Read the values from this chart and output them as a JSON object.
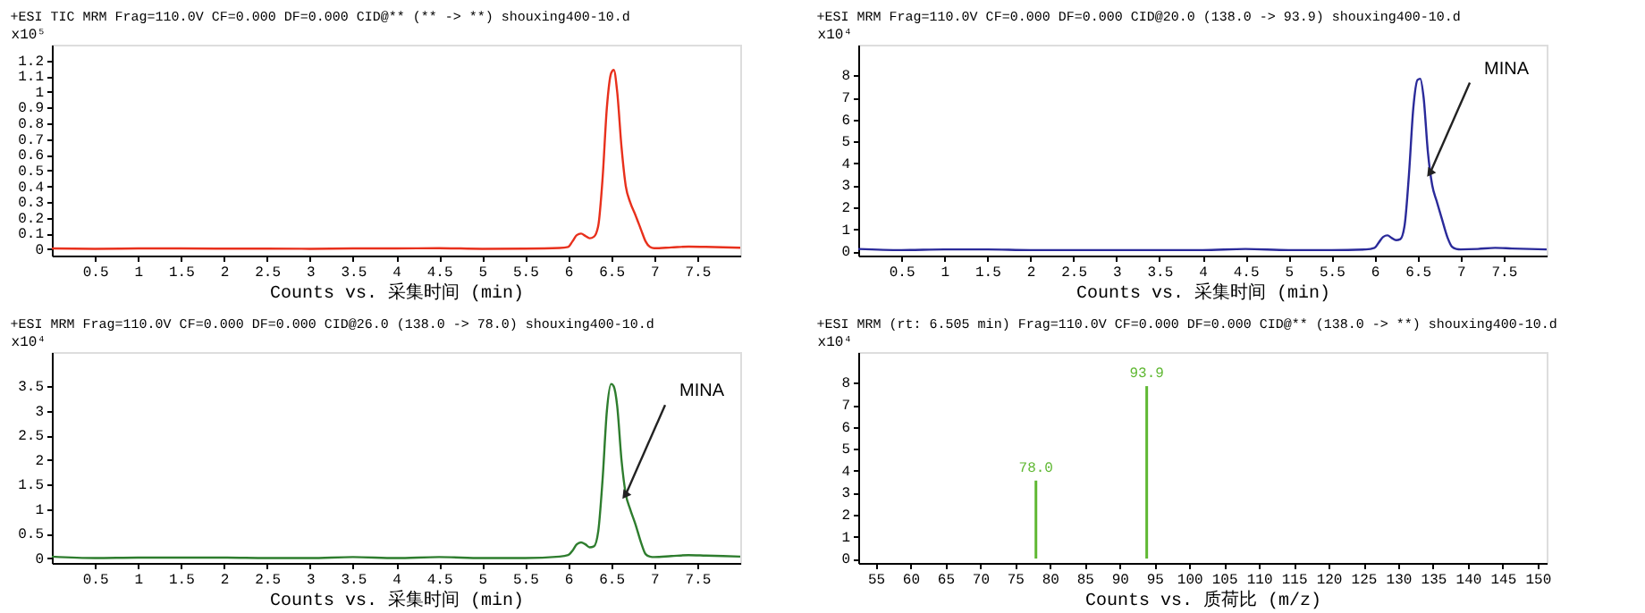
{
  "chart_data": [
    {
      "type": "line",
      "title": "+ESI TIC MRM Frag=110.0V CF=0.000 DF=0.000 CID@** (** -> **) shouxing400-10.d",
      "xlabel": "Counts vs. 采集时间 (min)",
      "ylabel": "x10⁵",
      "xlim": [
        0,
        8
      ],
      "xticks": [
        0.5,
        1,
        1.5,
        2,
        2.5,
        3,
        3.5,
        4,
        4.5,
        5,
        5.5,
        6,
        6.5,
        7,
        7.5
      ],
      "ylim": [
        -0.04,
        1.3
      ],
      "yticks": [
        0,
        0.1,
        0.2,
        0.3,
        0.4,
        0.5,
        0.6,
        0.7,
        0.8,
        0.9,
        1,
        1.1,
        1.2
      ],
      "grid": false,
      "x": [
        0,
        0.5,
        1,
        1.5,
        2,
        2.5,
        3,
        3.5,
        4,
        4.5,
        5,
        5.5,
        5.9,
        6.0,
        6.05,
        6.1,
        6.15,
        6.2,
        6.25,
        6.3,
        6.35,
        6.4,
        6.45,
        6.5,
        6.53,
        6.57,
        6.62,
        6.67,
        6.72,
        6.78,
        6.85,
        6.9,
        6.95,
        7.0,
        7.2,
        7.4,
        7.6,
        8.0
      ],
      "series": [
        {
          "color": "#e8301c",
          "values": [
            0.005,
            0.003,
            0.005,
            0.005,
            0.004,
            0.004,
            0.003,
            0.005,
            0.005,
            0.007,
            0.003,
            0.004,
            0.008,
            0.015,
            0.05,
            0.09,
            0.1,
            0.085,
            0.07,
            0.08,
            0.15,
            0.45,
            0.9,
            1.12,
            1.14,
            1.0,
            0.65,
            0.4,
            0.3,
            0.22,
            0.12,
            0.05,
            0.015,
            0.007,
            0.012,
            0.017,
            0.015,
            0.01
          ]
        }
      ]
    },
    {
      "type": "line",
      "title": "+ESI MRM Frag=110.0V CF=0.000 DF=0.000 CID@20.0 (138.0 -> 93.9) shouxing400-10.d",
      "xlabel": "Counts vs. 采集时间 (min)",
      "ylabel": "x10⁴",
      "xlim": [
        0,
        8
      ],
      "xticks": [
        0.5,
        1,
        1.5,
        2,
        2.5,
        3,
        3.5,
        4,
        4.5,
        5,
        5.5,
        6,
        6.5,
        7,
        7.5
      ],
      "ylim": [
        -0.2,
        9.4
      ],
      "yticks": [
        0,
        1,
        2,
        3,
        4,
        5,
        6,
        7,
        8
      ],
      "grid": false,
      "annotations": [
        {
          "text": "MINA",
          "x": 6.65,
          "y": 3.6
        }
      ],
      "x": [
        0,
        0.5,
        1,
        1.5,
        2,
        2.5,
        3,
        3.5,
        4,
        4.5,
        5,
        5.5,
        5.9,
        6.0,
        6.05,
        6.1,
        6.15,
        6.2,
        6.25,
        6.3,
        6.35,
        6.4,
        6.45,
        6.5,
        6.53,
        6.57,
        6.62,
        6.67,
        6.72,
        6.78,
        6.85,
        6.9,
        6.95,
        7.0,
        7.2,
        7.4,
        7.6,
        8.0
      ],
      "series": [
        {
          "color": "#2a2a9a",
          "values": [
            0.1,
            0.05,
            0.08,
            0.08,
            0.05,
            0.05,
            0.05,
            0.05,
            0.05,
            0.1,
            0.05,
            0.05,
            0.08,
            0.15,
            0.4,
            0.65,
            0.72,
            0.6,
            0.5,
            0.55,
            1.2,
            3.5,
            6.5,
            7.8,
            7.85,
            7.0,
            4.5,
            3.0,
            2.3,
            1.5,
            0.6,
            0.2,
            0.1,
            0.08,
            0.1,
            0.15,
            0.12,
            0.08
          ]
        }
      ]
    },
    {
      "type": "line",
      "title": "+ESI MRM Frag=110.0V CF=0.000 DF=0.000 CID@26.0 (138.0 -> 78.0) shouxing400-10.d",
      "xlabel": "Counts vs. 采集时间 (min)",
      "ylabel": "x10⁴",
      "xlim": [
        0,
        8
      ],
      "xticks": [
        0.5,
        1,
        1.5,
        2,
        2.5,
        3,
        3.5,
        4,
        4.5,
        5,
        5.5,
        6,
        6.5,
        7,
        7.5
      ],
      "ylim": [
        -0.1,
        4.2
      ],
      "yticks": [
        0,
        0.5,
        1,
        1.5,
        2,
        2.5,
        3,
        3.5
      ],
      "grid": false,
      "annotations": [
        {
          "text": "MINA",
          "x": 6.67,
          "y": 1.3
        }
      ],
      "x": [
        0,
        0.5,
        1,
        1.5,
        2,
        2.5,
        3,
        3.5,
        4,
        4.5,
        5,
        5.5,
        5.9,
        6.0,
        6.05,
        6.1,
        6.15,
        6.2,
        6.25,
        6.3,
        6.35,
        6.4,
        6.45,
        6.5,
        6.53,
        6.57,
        6.62,
        6.67,
        6.72,
        6.78,
        6.85,
        6.9,
        6.95,
        7.0,
        7.2,
        7.4,
        7.6,
        8.0
      ],
      "series": [
        {
          "color": "#2e7d2e",
          "values": [
            0.03,
            0.0,
            0.01,
            0.01,
            0.01,
            0.0,
            0.0,
            0.02,
            0.0,
            0.02,
            0.0,
            0.0,
            0.03,
            0.06,
            0.15,
            0.28,
            0.32,
            0.28,
            0.22,
            0.24,
            0.55,
            1.6,
            3.0,
            3.55,
            3.5,
            3.1,
            2.0,
            1.3,
            1.0,
            0.7,
            0.3,
            0.08,
            0.03,
            0.02,
            0.04,
            0.06,
            0.05,
            0.03
          ]
        }
      ]
    },
    {
      "type": "bar",
      "title": "+ESI MRM (rt: 6.505 min) Frag=110.0V CF=0.000 DF=0.000 CID@** (138.0 -> **) shouxing400-10.d",
      "xlabel": "Counts vs. 质荷比 (m/z)",
      "ylabel": "x10⁴",
      "xlim": [
        52.5,
        151.3
      ],
      "xticks": [
        55,
        60,
        65,
        70,
        75,
        80,
        85,
        90,
        95,
        100,
        105,
        110,
        115,
        120,
        125,
        130,
        135,
        140,
        145,
        150
      ],
      "ylim": [
        -0.2,
        9.4
      ],
      "yticks": [
        0,
        1,
        2,
        3,
        4,
        5,
        6,
        7,
        8
      ],
      "grid": false,
      "x": [
        78.0,
        93.9
      ],
      "annotations": [
        {
          "text": "78.0",
          "x": 78.0,
          "y": 3.55
        },
        {
          "text": "93.9",
          "x": 93.9,
          "y": 7.85
        }
      ],
      "series": [
        {
          "color": "#5fb832",
          "values": [
            3.55,
            7.85
          ]
        }
      ]
    }
  ]
}
